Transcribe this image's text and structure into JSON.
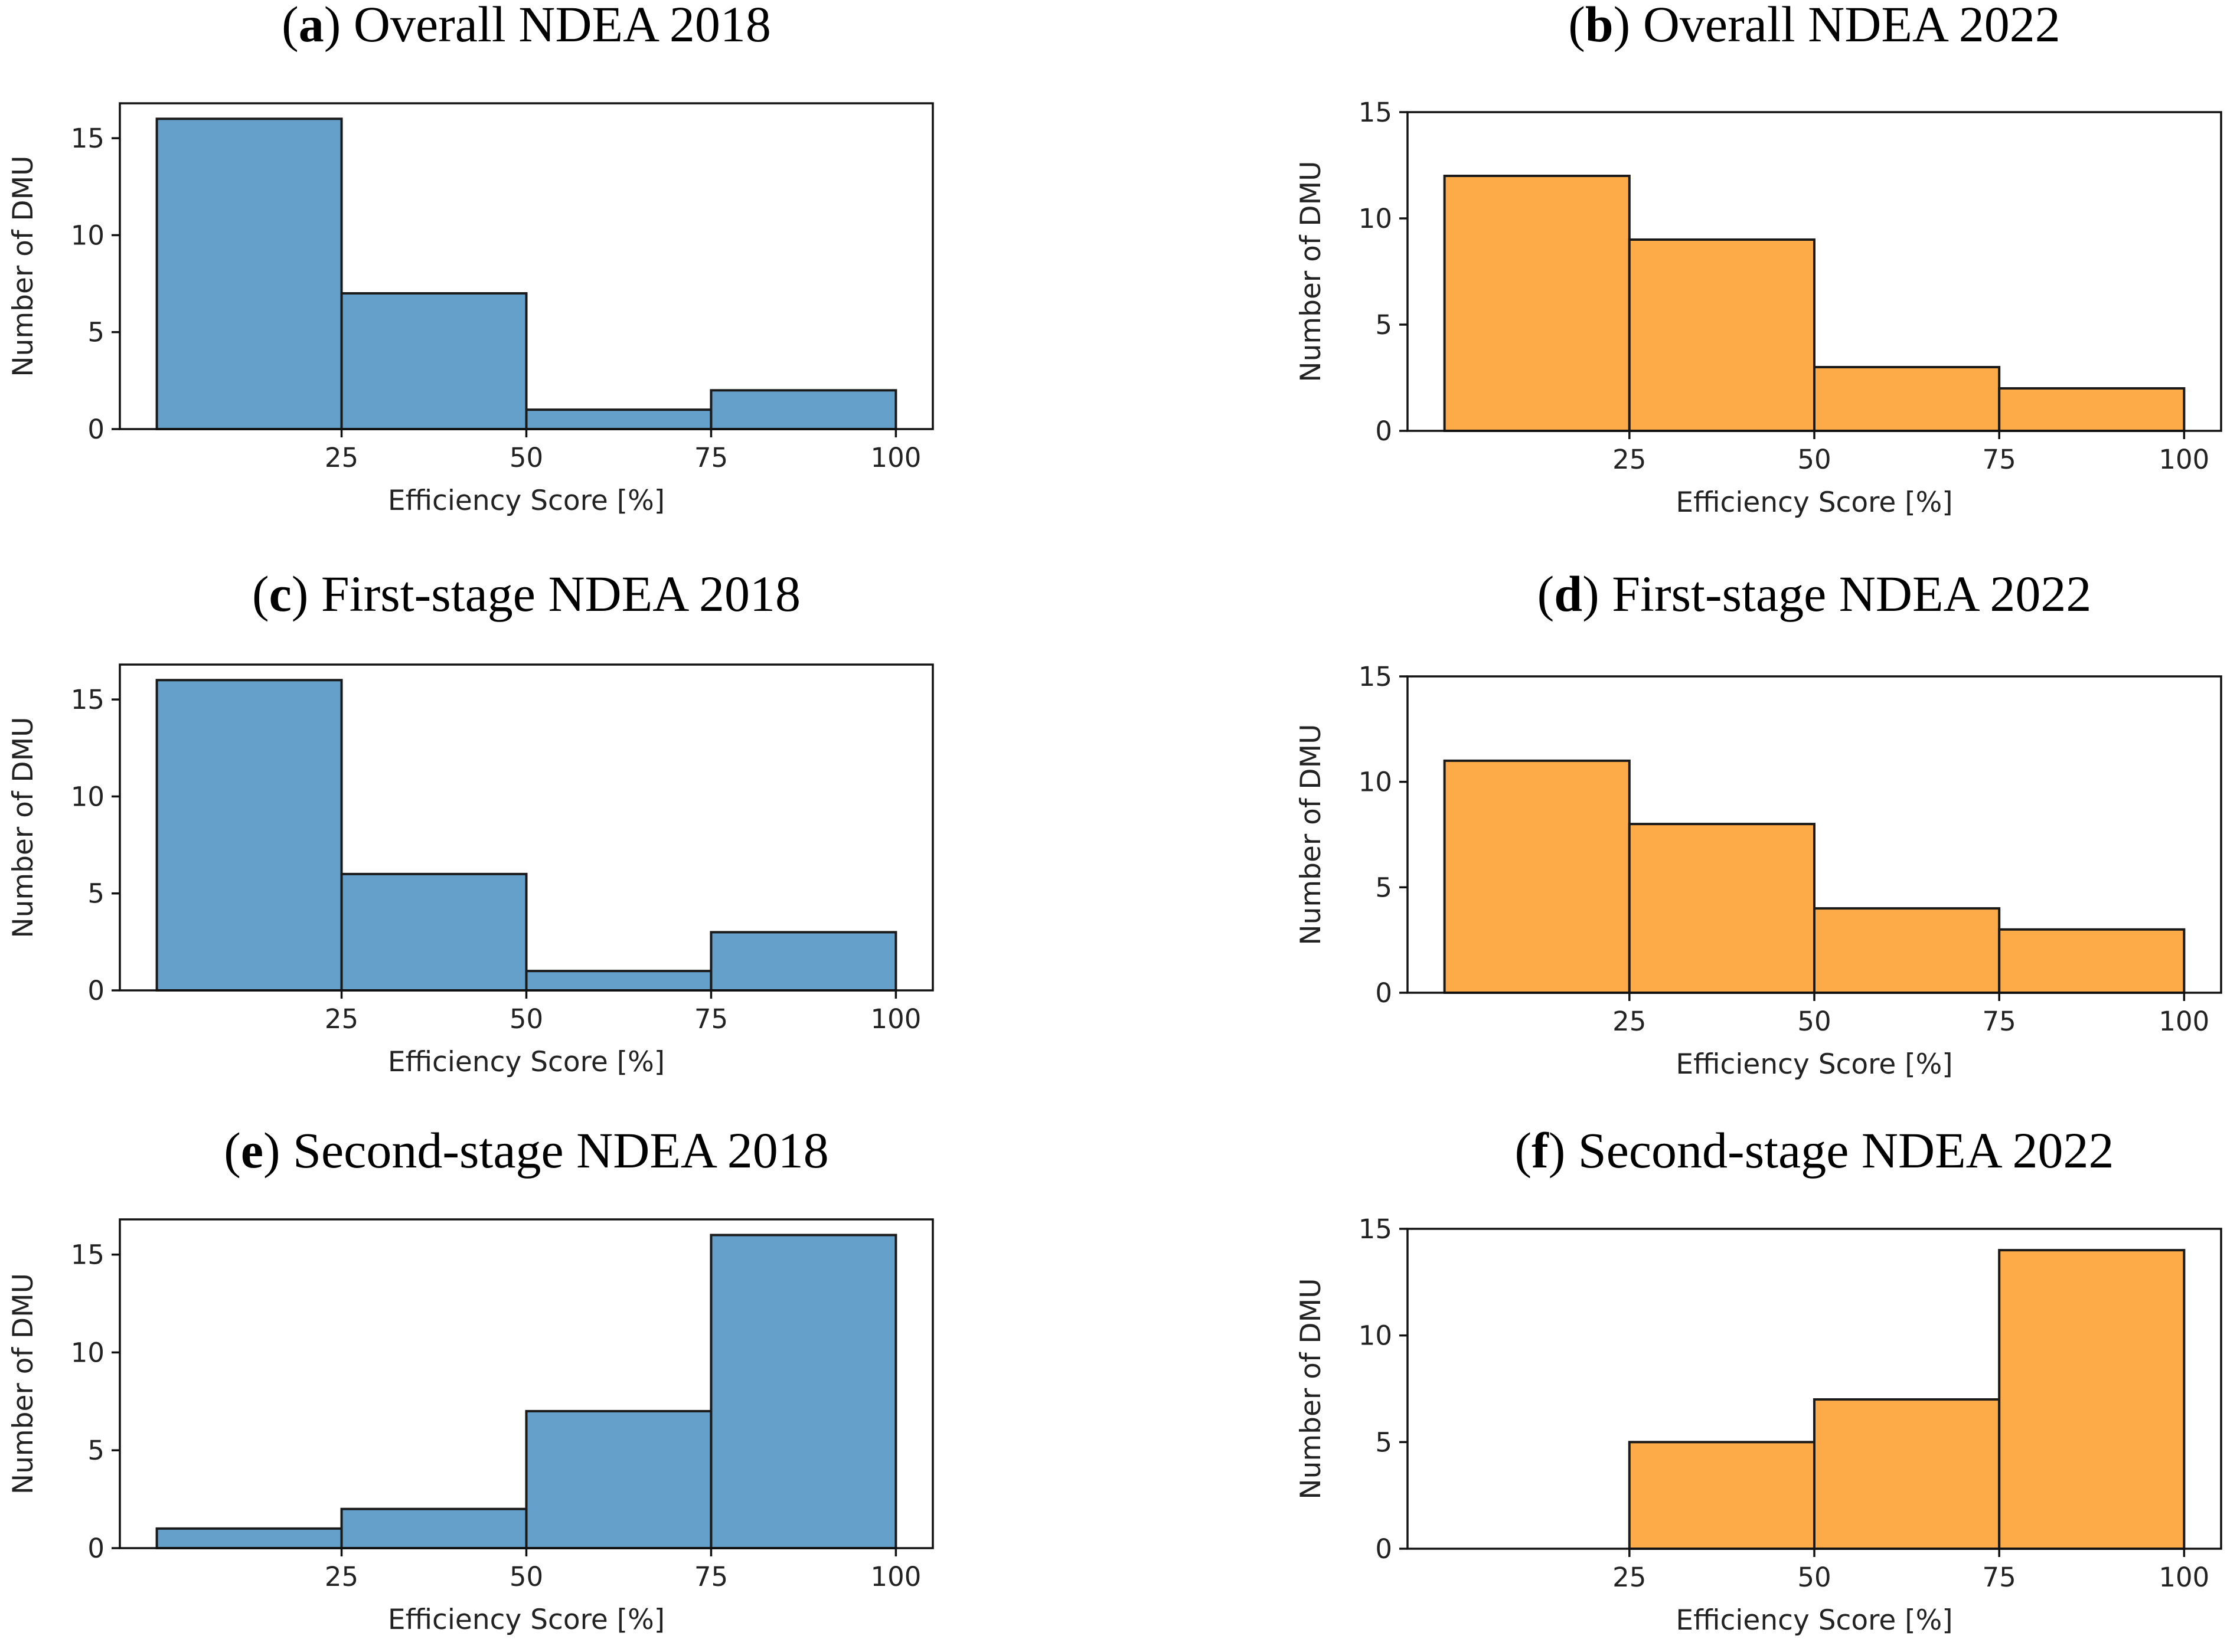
{
  "chart_data": [
    {
      "type": "bar",
      "subtype": "histogram",
      "panel_letter": "a",
      "title": "Overall NDEA 2018",
      "xlabel": "Efficiency Score [%]",
      "ylabel": "Number of DMU",
      "bin_edges": [
        0,
        25,
        50,
        75,
        100
      ],
      "values": [
        16,
        7,
        1,
        2
      ],
      "xticks": [
        25,
        50,
        75,
        100
      ],
      "yticks": [
        0,
        5,
        10,
        15
      ],
      "xlim": [
        -5,
        105
      ],
      "ylim": [
        0,
        16.8
      ],
      "color": "#64a0ca"
    },
    {
      "type": "bar",
      "subtype": "histogram",
      "panel_letter": "b",
      "title": "Overall NDEA 2022",
      "xlabel": "Efficiency Score [%]",
      "ylabel": "Number of DMU",
      "bin_edges": [
        0,
        25,
        50,
        75,
        100
      ],
      "values": [
        12,
        9,
        3,
        2
      ],
      "xticks": [
        25,
        50,
        75,
        100
      ],
      "yticks": [
        0,
        5,
        10,
        15
      ],
      "xlim": [
        -5,
        105
      ],
      "ylim": [
        0,
        15
      ],
      "color": "#fdab48"
    },
    {
      "type": "bar",
      "subtype": "histogram",
      "panel_letter": "c",
      "title": "First-stage NDEA 2018",
      "xlabel": "Efficiency Score [%]",
      "ylabel": "Number of DMU",
      "bin_edges": [
        0,
        25,
        50,
        75,
        100
      ],
      "values": [
        16,
        6,
        1,
        3
      ],
      "xticks": [
        25,
        50,
        75,
        100
      ],
      "yticks": [
        0,
        5,
        10,
        15
      ],
      "xlim": [
        -5,
        105
      ],
      "ylim": [
        0,
        16.8
      ],
      "color": "#64a0ca"
    },
    {
      "type": "bar",
      "subtype": "histogram",
      "panel_letter": "d",
      "title": "First-stage NDEA 2022",
      "xlabel": "Efficiency Score [%]",
      "ylabel": "Number of DMU",
      "bin_edges": [
        0,
        25,
        50,
        75,
        100
      ],
      "values": [
        11,
        8,
        4,
        3
      ],
      "xticks": [
        25,
        50,
        75,
        100
      ],
      "yticks": [
        0,
        5,
        10,
        15
      ],
      "xlim": [
        -5,
        105
      ],
      "ylim": [
        0,
        15
      ],
      "color": "#fdab48"
    },
    {
      "type": "bar",
      "subtype": "histogram",
      "panel_letter": "e",
      "title": "Second-stage NDEA 2018",
      "xlabel": "Efficiency Score [%]",
      "ylabel": "Number of DMU",
      "bin_edges": [
        0,
        25,
        50,
        75,
        100
      ],
      "values": [
        1,
        2,
        7,
        16
      ],
      "xticks": [
        25,
        50,
        75,
        100
      ],
      "yticks": [
        0,
        5,
        10,
        15
      ],
      "xlim": [
        -5,
        105
      ],
      "ylim": [
        0,
        16.8
      ],
      "color": "#64a0ca"
    },
    {
      "type": "bar",
      "subtype": "histogram",
      "panel_letter": "f",
      "title": "Second-stage NDEA 2022",
      "xlabel": "Efficiency Score [%]",
      "ylabel": "Number of DMU",
      "bin_edges": [
        25,
        50,
        75,
        100
      ],
      "values": [
        5,
        7,
        14
      ],
      "xticks": [
        25,
        50,
        75,
        100
      ],
      "yticks": [
        0,
        5,
        10,
        15
      ],
      "xlim": [
        -5,
        105
      ],
      "ylim": [
        0,
        15
      ],
      "color": "#fdab48"
    }
  ]
}
